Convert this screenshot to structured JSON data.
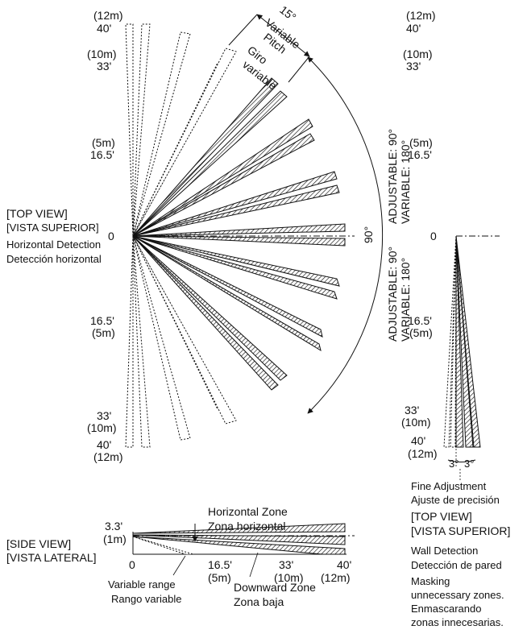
{
  "top_view": {
    "title": "[TOP VIEW]",
    "subtitle": "[VISTA SUPERIOR]",
    "caption_en": "Horizontal Detection",
    "caption_es": "Detección horizontal",
    "scale_labels": [
      "(12m)",
      "40'",
      "(10m)",
      "33'",
      "(5m)",
      "16.5'",
      "0",
      "16.5'",
      "(5m)",
      "33'",
      "(10m)",
      "40'",
      "(12m)"
    ],
    "pitch_angle": "15°",
    "pitch_en_1": "Variable",
    "pitch_en_2": "Pitch",
    "pitch_es_1": "Giro",
    "pitch_es_2": "variable",
    "arc_angle": "90°",
    "adj_upper_1": "ADJUSTABLE: 90°",
    "adj_upper_2": "VARIABLE: 180°",
    "adj_lower_1": "ADJUSTABLE: 90°",
    "adj_lower_2": "VARIABLE: 180°"
  },
  "wall_view": {
    "scale_labels": [
      "(12m)",
      "40'",
      "(10m)",
      "33'",
      "(5m)",
      "16.5'",
      "0",
      "16.5'",
      "(5m)",
      "33'",
      "(10m)",
      "40'",
      "(12m)"
    ],
    "angle_left": "3°",
    "angle_right": "3°",
    "fine_en": "Fine Adjustment",
    "fine_es": "Ajuste de precisión",
    "title": "[TOP VIEW]",
    "subtitle": "[VISTA SUPERIOR]",
    "wall_en": "Wall Detection",
    "wall_es": "Detección de pared",
    "mask_en_1": "Masking",
    "mask_en_2": "unnecessary zones.",
    "mask_es_1": "Enmascarando",
    "mask_es_2": "zonas innecesarias."
  },
  "side_view": {
    "title": "[SIDE VIEW]",
    "subtitle": "[VISTA LATERAL]",
    "height_ft": "3.3'",
    "height_m": "(1m)",
    "horizontal_en": "Horizontal Zone",
    "horizontal_es": "Zona horizontal",
    "downward_en": "Downward Zone",
    "downward_es": "Zona baja",
    "range_en": "Variable range",
    "range_es": "Rango variable",
    "axis": [
      "0",
      "16.5'",
      "(5m)",
      "33'",
      "(10m)",
      "40'",
      "(12m)"
    ]
  }
}
